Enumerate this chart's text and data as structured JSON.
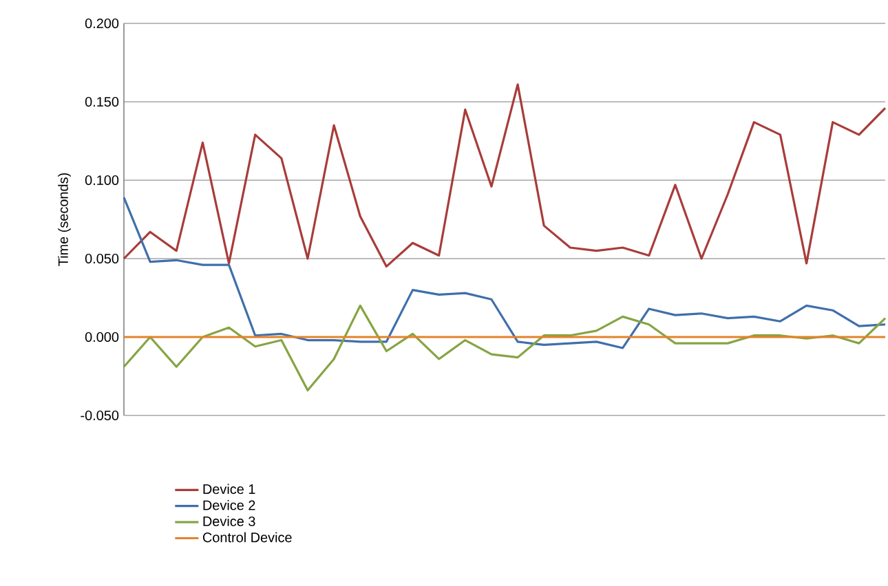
{
  "chart_data": {
    "type": "line",
    "ylabel": "Time (seconds)",
    "categories": [
      null,
      null,
      null,
      null,
      null,
      null,
      null,
      null,
      null,
      null,
      null,
      null,
      null,
      null,
      null,
      null,
      null,
      null,
      null,
      null,
      null,
      null,
      null,
      null,
      null,
      null,
      null,
      null,
      null,
      null
    ],
    "series": [
      {
        "name": "Device 1",
        "color": "#a83c3a",
        "values": [
          0.05,
          0.067,
          0.055,
          0.124,
          0.047,
          0.129,
          0.114,
          0.05,
          0.135,
          0.077,
          0.045,
          0.06,
          0.052,
          0.145,
          0.096,
          0.161,
          0.071,
          0.057,
          0.055,
          0.057,
          0.052,
          0.097,
          0.05,
          0.091,
          0.137,
          0.129,
          0.047,
          0.137,
          0.129,
          0.146
        ]
      },
      {
        "name": "Device 2",
        "color": "#3f6faa",
        "values": [
          0.089,
          0.048,
          0.049,
          0.046,
          0.046,
          0.001,
          0.002,
          -0.002,
          -0.002,
          -0.003,
          -0.003,
          0.03,
          0.027,
          0.028,
          0.024,
          -0.003,
          -0.005,
          -0.004,
          -0.003,
          -0.007,
          0.018,
          0.014,
          0.015,
          0.012,
          0.013,
          0.01,
          0.02,
          0.017,
          0.007,
          0.008
        ]
      },
      {
        "name": "Device 3",
        "color": "#86a443",
        "values": [
          -0.019,
          0.0,
          -0.019,
          0.0,
          0.006,
          -0.006,
          -0.002,
          -0.034,
          -0.014,
          0.02,
          -0.009,
          0.002,
          -0.014,
          -0.002,
          -0.011,
          -0.013,
          0.001,
          0.001,
          0.004,
          0.013,
          0.008,
          -0.004,
          -0.004,
          -0.004,
          0.001,
          0.001,
          -0.001,
          0.001,
          -0.004,
          0.012
        ]
      },
      {
        "name": "Control Device",
        "color": "#e4822c",
        "values": [
          0,
          0,
          0,
          0,
          0,
          0,
          0,
          0,
          0,
          0,
          0,
          0,
          0,
          0,
          0,
          0,
          0,
          0,
          0,
          0,
          0,
          0,
          0,
          0,
          0,
          0,
          0,
          0,
          0,
          0
        ]
      }
    ],
    "ylim": [
      -0.05,
      0.2
    ],
    "yticks": [
      {
        "value": -0.05,
        "label": "-0.050"
      },
      {
        "value": 0,
        "label": "0.000"
      },
      {
        "value": 0.05,
        "label": "0.050"
      },
      {
        "value": 0.1,
        "label": "0.100"
      },
      {
        "value": 0.15,
        "label": "0.150"
      },
      {
        "value": 0.2,
        "label": "0.200"
      }
    ],
    "grid": "y",
    "legend": "bottom",
    "marker": "none",
    "line_style": "solid"
  }
}
